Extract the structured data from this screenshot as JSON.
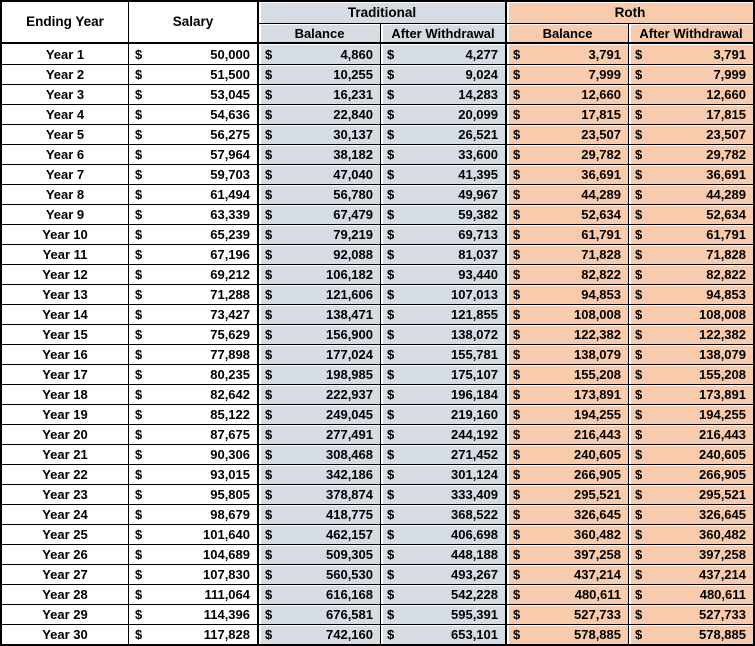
{
  "currency_symbol": "$",
  "colors": {
    "traditional_bg": "#D6DCE4",
    "roth_bg": "#F8CBAD",
    "grid_border": "#000000",
    "background": "#FFFFFF"
  },
  "header": {
    "col_year": "Ending Year",
    "col_salary": "Salary",
    "group_traditional": "Traditional",
    "group_roth": "Roth",
    "sub_balance": "Balance",
    "sub_after_withdrawal": "After Withdrawal"
  },
  "rows": [
    {
      "year": "Year 1",
      "salary": "50,000",
      "trad_balance": "4,860",
      "trad_after_withdrawal": "4,277",
      "roth_balance": "3,791",
      "roth_after_withdrawal": "3,791"
    },
    {
      "year": "Year 2",
      "salary": "51,500",
      "trad_balance": "10,255",
      "trad_after_withdrawal": "9,024",
      "roth_balance": "7,999",
      "roth_after_withdrawal": "7,999"
    },
    {
      "year": "Year 3",
      "salary": "53,045",
      "trad_balance": "16,231",
      "trad_after_withdrawal": "14,283",
      "roth_balance": "12,660",
      "roth_after_withdrawal": "12,660"
    },
    {
      "year": "Year 4",
      "salary": "54,636",
      "trad_balance": "22,840",
      "trad_after_withdrawal": "20,099",
      "roth_balance": "17,815",
      "roth_after_withdrawal": "17,815"
    },
    {
      "year": "Year 5",
      "salary": "56,275",
      "trad_balance": "30,137",
      "trad_after_withdrawal": "26,521",
      "roth_balance": "23,507",
      "roth_after_withdrawal": "23,507"
    },
    {
      "year": "Year 6",
      "salary": "57,964",
      "trad_balance": "38,182",
      "trad_after_withdrawal": "33,600",
      "roth_balance": "29,782",
      "roth_after_withdrawal": "29,782"
    },
    {
      "year": "Year 7",
      "salary": "59,703",
      "trad_balance": "47,040",
      "trad_after_withdrawal": "41,395",
      "roth_balance": "36,691",
      "roth_after_withdrawal": "36,691"
    },
    {
      "year": "Year 8",
      "salary": "61,494",
      "trad_balance": "56,780",
      "trad_after_withdrawal": "49,967",
      "roth_balance": "44,289",
      "roth_after_withdrawal": "44,289"
    },
    {
      "year": "Year 9",
      "salary": "63,339",
      "trad_balance": "67,479",
      "trad_after_withdrawal": "59,382",
      "roth_balance": "52,634",
      "roth_after_withdrawal": "52,634"
    },
    {
      "year": "Year 10",
      "salary": "65,239",
      "trad_balance": "79,219",
      "trad_after_withdrawal": "69,713",
      "roth_balance": "61,791",
      "roth_after_withdrawal": "61,791"
    },
    {
      "year": "Year 11",
      "salary": "67,196",
      "trad_balance": "92,088",
      "trad_after_withdrawal": "81,037",
      "roth_balance": "71,828",
      "roth_after_withdrawal": "71,828"
    },
    {
      "year": "Year 12",
      "salary": "69,212",
      "trad_balance": "106,182",
      "trad_after_withdrawal": "93,440",
      "roth_balance": "82,822",
      "roth_after_withdrawal": "82,822"
    },
    {
      "year": "Year 13",
      "salary": "71,288",
      "trad_balance": "121,606",
      "trad_after_withdrawal": "107,013",
      "roth_balance": "94,853",
      "roth_after_withdrawal": "94,853"
    },
    {
      "year": "Year 14",
      "salary": "73,427",
      "trad_balance": "138,471",
      "trad_after_withdrawal": "121,855",
      "roth_balance": "108,008",
      "roth_after_withdrawal": "108,008"
    },
    {
      "year": "Year 15",
      "salary": "75,629",
      "trad_balance": "156,900",
      "trad_after_withdrawal": "138,072",
      "roth_balance": "122,382",
      "roth_after_withdrawal": "122,382"
    },
    {
      "year": "Year 16",
      "salary": "77,898",
      "trad_balance": "177,024",
      "trad_after_withdrawal": "155,781",
      "roth_balance": "138,079",
      "roth_after_withdrawal": "138,079"
    },
    {
      "year": "Year 17",
      "salary": "80,235",
      "trad_balance": "198,985",
      "trad_after_withdrawal": "175,107",
      "roth_balance": "155,208",
      "roth_after_withdrawal": "155,208"
    },
    {
      "year": "Year 18",
      "salary": "82,642",
      "trad_balance": "222,937",
      "trad_after_withdrawal": "196,184",
      "roth_balance": "173,891",
      "roth_after_withdrawal": "173,891"
    },
    {
      "year": "Year 19",
      "salary": "85,122",
      "trad_balance": "249,045",
      "trad_after_withdrawal": "219,160",
      "roth_balance": "194,255",
      "roth_after_withdrawal": "194,255"
    },
    {
      "year": "Year 20",
      "salary": "87,675",
      "trad_balance": "277,491",
      "trad_after_withdrawal": "244,192",
      "roth_balance": "216,443",
      "roth_after_withdrawal": "216,443"
    },
    {
      "year": "Year 21",
      "salary": "90,306",
      "trad_balance": "308,468",
      "trad_after_withdrawal": "271,452",
      "roth_balance": "240,605",
      "roth_after_withdrawal": "240,605"
    },
    {
      "year": "Year 22",
      "salary": "93,015",
      "trad_balance": "342,186",
      "trad_after_withdrawal": "301,124",
      "roth_balance": "266,905",
      "roth_after_withdrawal": "266,905"
    },
    {
      "year": "Year 23",
      "salary": "95,805",
      "trad_balance": "378,874",
      "trad_after_withdrawal": "333,409",
      "roth_balance": "295,521",
      "roth_after_withdrawal": "295,521"
    },
    {
      "year": "Year 24",
      "salary": "98,679",
      "trad_balance": "418,775",
      "trad_after_withdrawal": "368,522",
      "roth_balance": "326,645",
      "roth_after_withdrawal": "326,645"
    },
    {
      "year": "Year 25",
      "salary": "101,640",
      "trad_balance": "462,157",
      "trad_after_withdrawal": "406,698",
      "roth_balance": "360,482",
      "roth_after_withdrawal": "360,482"
    },
    {
      "year": "Year 26",
      "salary": "104,689",
      "trad_balance": "509,305",
      "trad_after_withdrawal": "448,188",
      "roth_balance": "397,258",
      "roth_after_withdrawal": "397,258"
    },
    {
      "year": "Year 27",
      "salary": "107,830",
      "trad_balance": "560,530",
      "trad_after_withdrawal": "493,267",
      "roth_balance": "437,214",
      "roth_after_withdrawal": "437,214"
    },
    {
      "year": "Year 28",
      "salary": "111,064",
      "trad_balance": "616,168",
      "trad_after_withdrawal": "542,228",
      "roth_balance": "480,611",
      "roth_after_withdrawal": "480,611"
    },
    {
      "year": "Year 29",
      "salary": "114,396",
      "trad_balance": "676,581",
      "trad_after_withdrawal": "595,391",
      "roth_balance": "527,733",
      "roth_after_withdrawal": "527,733"
    },
    {
      "year": "Year 30",
      "salary": "117,828",
      "trad_balance": "742,160",
      "trad_after_withdrawal": "653,101",
      "roth_balance": "578,885",
      "roth_after_withdrawal": "578,885"
    }
  ]
}
